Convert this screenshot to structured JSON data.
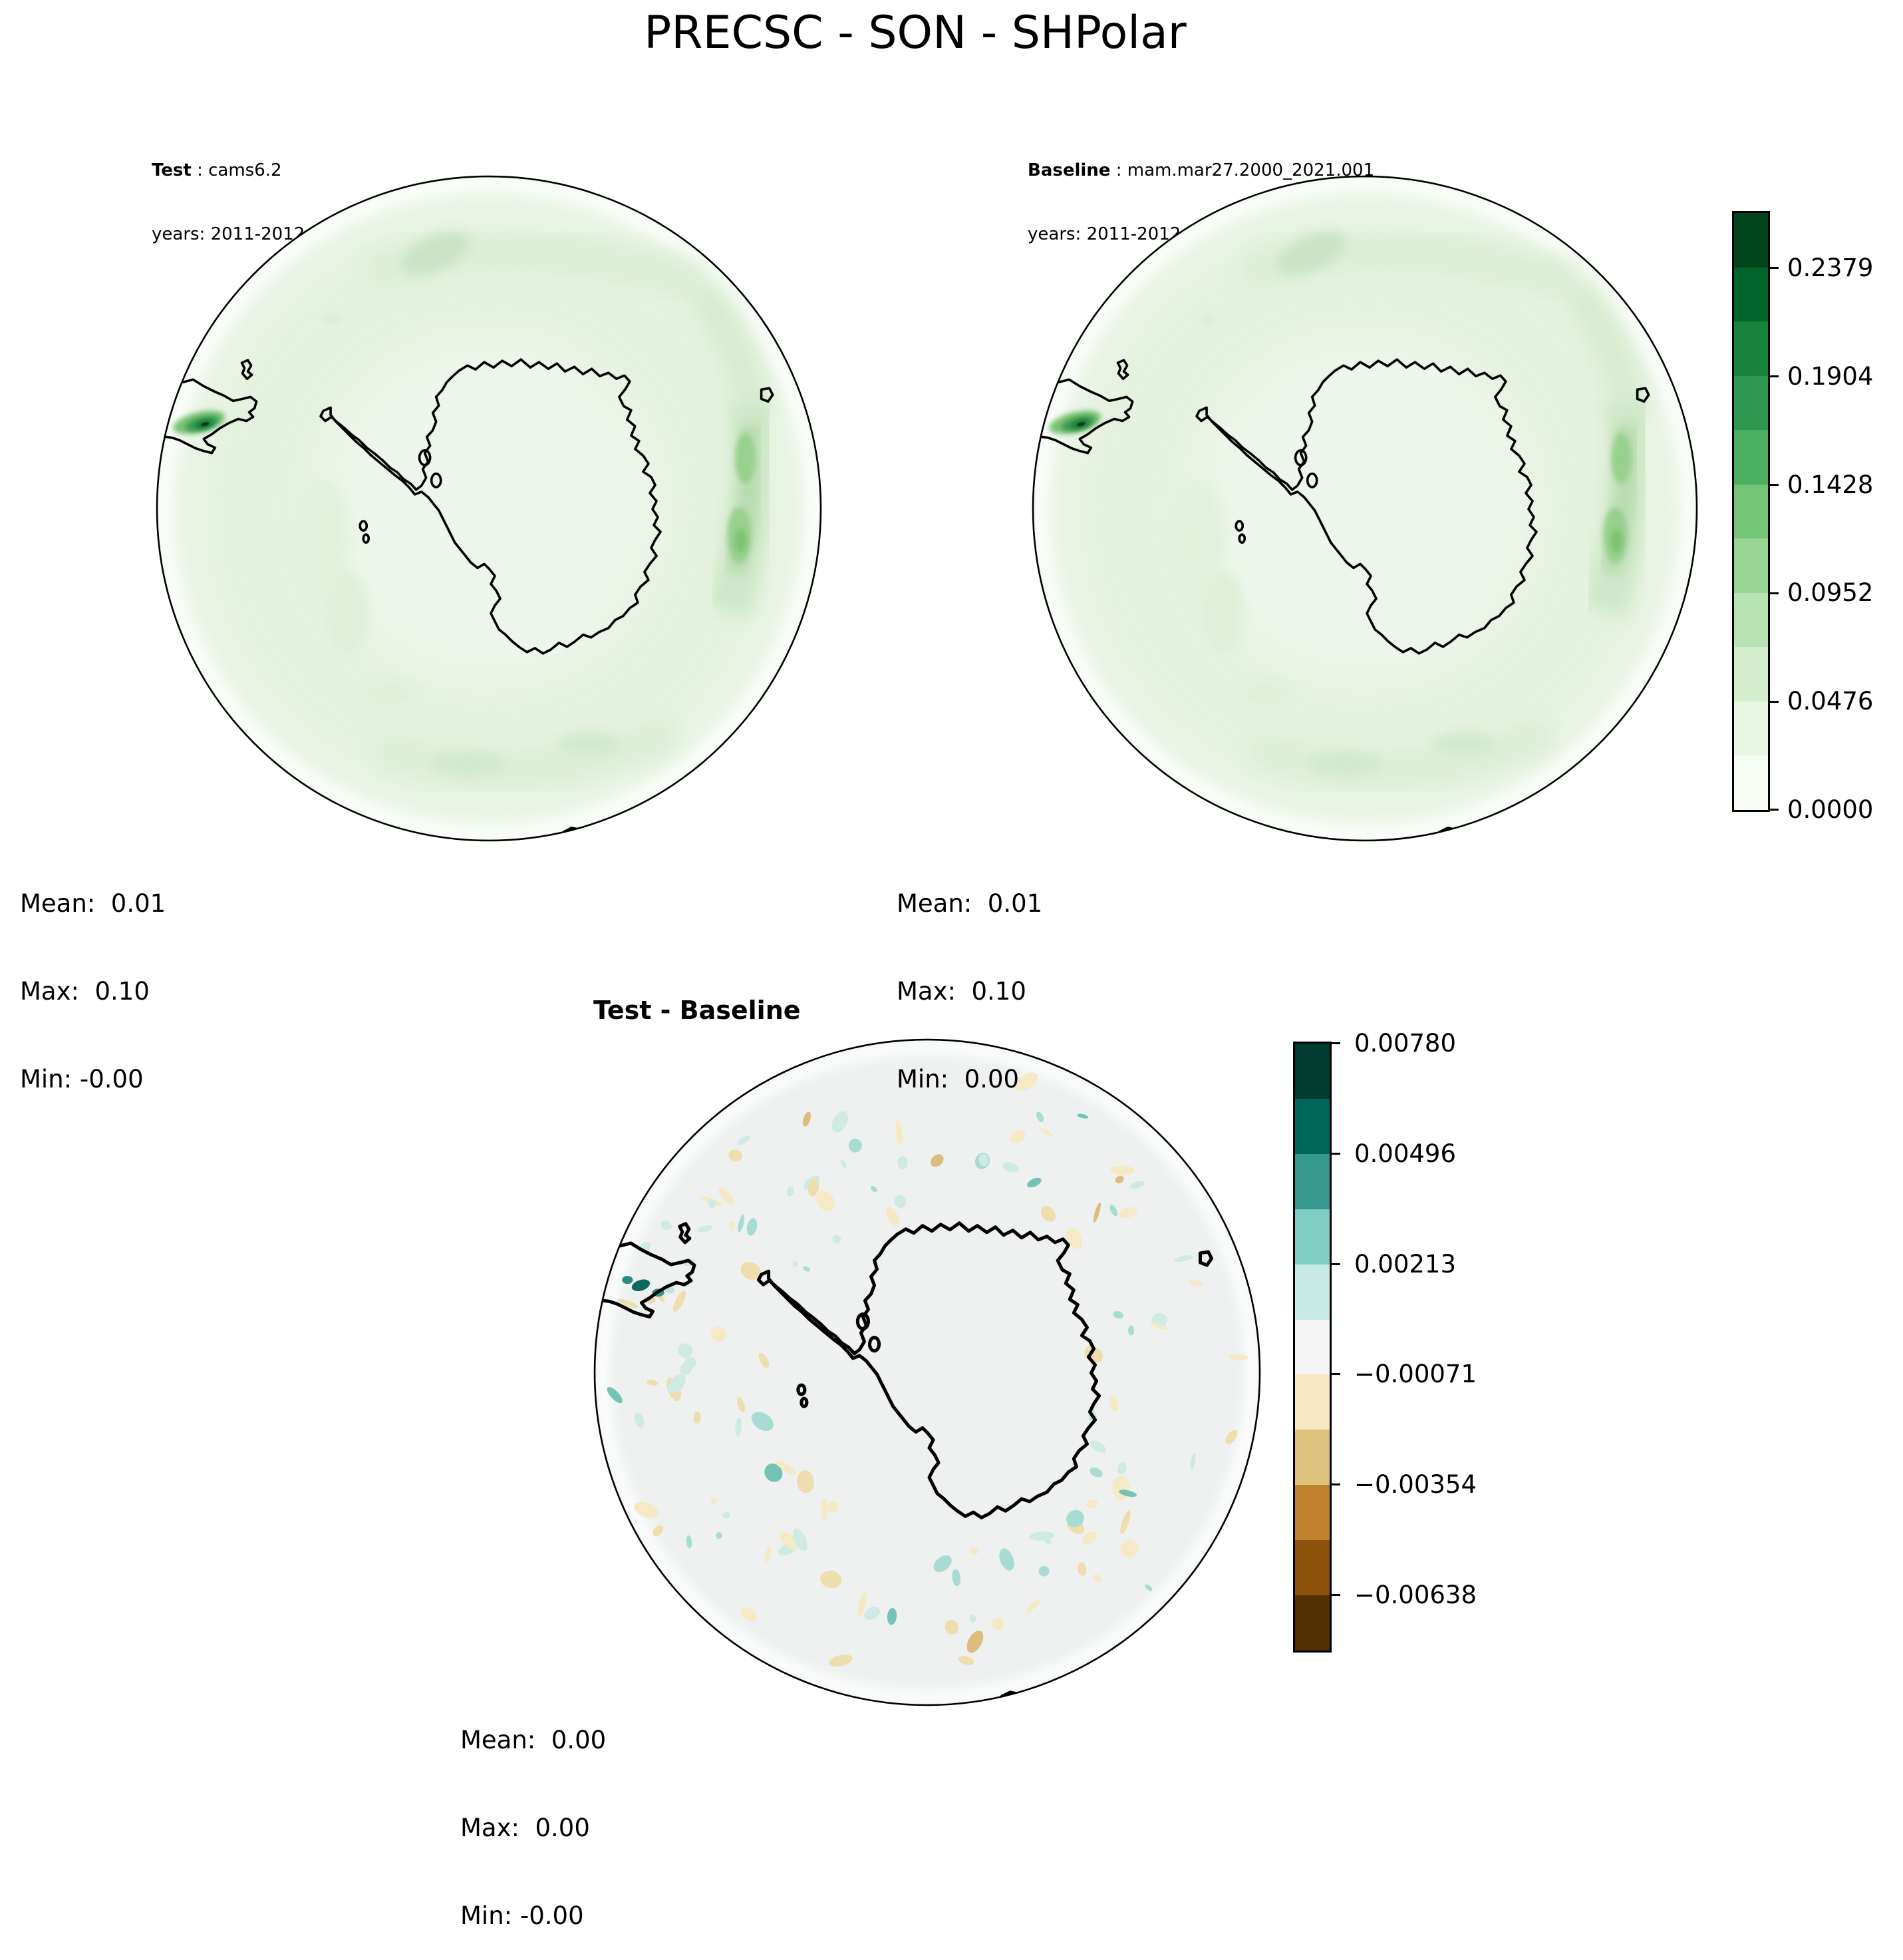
{
  "title": "PRECSC - SON - SHPolar",
  "panels": {
    "test": {
      "label_bold": "Test",
      "label_rest": " : cams6.2",
      "years_line": "years: 2011-2012",
      "stats": {
        "mean": "Mean:  0.01",
        "max": "Max:  0.10",
        "min": "Min: -0.00"
      }
    },
    "baseline": {
      "label_bold": "Baseline",
      "label_rest": " : mam.mar27.2000_2021.001",
      "years_line": "years: 2011-2012",
      "stats": {
        "mean": "Mean:  0.01",
        "max": "Max:  0.10",
        "min": "Min:  0.00"
      }
    },
    "diff": {
      "title": "Test - Baseline",
      "stats": {
        "mean": "Mean:  0.00",
        "max": "Max:  0.00",
        "min": "Min: -0.00"
      }
    }
  },
  "colorbars": {
    "main": {
      "tick_labels": [
        "0.2379",
        "0.1904",
        "0.1428",
        "0.0952",
        "0.0476",
        "0.0000"
      ],
      "segment_colors_top_to_bottom": [
        "#00441b",
        "#03642a",
        "#17823c",
        "#2f9850",
        "#4bae60",
        "#74c476",
        "#98d493",
        "#b8e3b2",
        "#d3eecd",
        "#e8f6e3",
        "#f7fcf5"
      ]
    },
    "diff": {
      "tick_labels": [
        "0.00780",
        "0.00496",
        "0.00213",
        "−0.00071",
        "−0.00354",
        "−0.00638"
      ],
      "segment_colors_top_to_bottom": [
        "#003c30",
        "#01665e",
        "#35978f",
        "#80cdc1",
        "#c7eae5",
        "#f5f5f5",
        "#f6e8c3",
        "#dfc27d",
        "#bf812d",
        "#8c510a",
        "#543005"
      ]
    }
  },
  "colors": {
    "coastline": "#000000",
    "test_map_background": "#edf6ea",
    "diff_map_background": "#eef1ef",
    "figure_background": "#ffffff"
  },
  "chart_data": [
    {
      "type": "heatmap",
      "subtype": "south-polar-stereographic contour map",
      "panel": "Test",
      "variable": "PRECSC",
      "season": "SON",
      "region": "SHPolar",
      "run_name": "cams6.2",
      "years": "2011-2012",
      "colormap": "Greens (11 discrete levels)",
      "colorbar_ticks": [
        0.0,
        0.0476,
        0.0952,
        0.1428,
        0.1904,
        0.2379
      ],
      "value_range": [
        0.0,
        0.2617
      ],
      "stats": {
        "mean": "0.01",
        "max": "0.10",
        "min": "-0.00"
      },
      "features": "Light green field over Southern Ocean with enhanced band along storm track, strongest maximum over southern Andes near map edge; Antarctica outlined, near-zero values inland"
    },
    {
      "type": "heatmap",
      "subtype": "south-polar-stereographic contour map",
      "panel": "Baseline",
      "variable": "PRECSC",
      "season": "SON",
      "region": "SHPolar",
      "run_name": "mam.mar27.2000_2021.001",
      "years": "2011-2012",
      "colormap": "Greens (11 discrete levels)",
      "colorbar_ticks": [
        0.0,
        0.0476,
        0.0952,
        0.1428,
        0.1904,
        0.2379
      ],
      "value_range": [
        0.0,
        0.2617
      ],
      "stats": {
        "mean": "0.01",
        "max": "0.10",
        "min": "0.00"
      },
      "features": "Pattern nearly identical to Test panel"
    },
    {
      "type": "heatmap",
      "subtype": "south-polar-stereographic contour map",
      "panel": "Test - Baseline",
      "variable": "PRECSC difference",
      "season": "SON",
      "region": "SHPolar",
      "colormap": "BrBG diverging (11 discrete levels)",
      "colorbar_ticks": [
        -0.00638,
        -0.00354,
        -0.00071,
        0.00213,
        0.00496,
        0.0078
      ],
      "value_range": [
        -0.0078,
        0.0078
      ],
      "stats": {
        "mean": "0.00",
        "max": "0.00",
        "min": "-0.00"
      },
      "features": "Near-zero gray field with small scattered teal (positive) and tan (negative) differences in a ring over the Southern Ocean; strongest teal spots near southern South America"
    }
  ]
}
